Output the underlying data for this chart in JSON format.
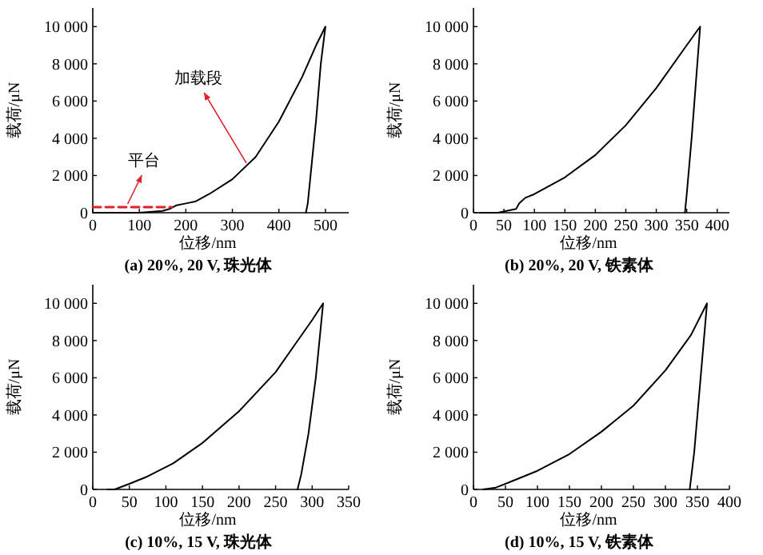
{
  "chart_data": [
    {
      "type": "line",
      "title": "(a) 20%, 20 V, 珠光体",
      "xlabel": "位移/nm",
      "ylabel": "载荷/μN",
      "xlim": [
        0,
        550
      ],
      "ylim": [
        0,
        11000
      ],
      "xticks": [
        0,
        100,
        200,
        300,
        400,
        500
      ],
      "yticks": [
        {
          "value": 0,
          "label": "0"
        },
        {
          "value": 2000,
          "label": "2 000"
        },
        {
          "value": 4000,
          "label": "4 000"
        },
        {
          "value": 6000,
          "label": "6 000"
        },
        {
          "value": 8000,
          "label": "8 000"
        },
        {
          "value": 10000,
          "label": "10 000"
        }
      ],
      "series": [
        {
          "color": "#000000",
          "line_style": "solid",
          "x": [
            0,
            50,
            100,
            150,
            165,
            180,
            200,
            220,
            250,
            300,
            350,
            400,
            450,
            480,
            500,
            490,
            480,
            470,
            462,
            458
          ],
          "values": [
            0,
            0,
            0,
            100,
            200,
            400,
            500,
            600,
            1000,
            1800,
            3000,
            4900,
            7300,
            9000,
            10000,
            8000,
            5000,
            2500,
            500,
            0
          ]
        },
        {
          "color": "#e0202a",
          "line_style": "dashed",
          "x": [
            0,
            170
          ],
          "values": [
            300,
            300
          ]
        }
      ],
      "annotations": [
        {
          "text": "平台",
          "x": 75,
          "y": 300
        },
        {
          "text": "加载段",
          "x": 330,
          "y": 2500
        }
      ]
    },
    {
      "type": "line",
      "title": "(b) 20%, 20 V, 铁素体",
      "xlabel": "位移/nm",
      "ylabel": "载荷/μN",
      "xlim": [
        0,
        420
      ],
      "ylim": [
        0,
        11000
      ],
      "xticks": [
        0,
        50,
        100,
        150,
        200,
        250,
        300,
        350,
        400
      ],
      "yticks": [
        {
          "value": 0,
          "label": "0"
        },
        {
          "value": 2000,
          "label": "2 000"
        },
        {
          "value": 4000,
          "label": "4 000"
        },
        {
          "value": 6000,
          "label": "6 000"
        },
        {
          "value": 8000,
          "label": "8 000"
        },
        {
          "value": 10000,
          "label": "10 000"
        }
      ],
      "series": [
        {
          "color": "#000000",
          "line_style": "solid",
          "x": [
            10,
            30,
            40,
            70,
            75,
            85,
            100,
            150,
            200,
            250,
            300,
            350,
            372,
            365,
            358,
            350,
            347
          ],
          "values": [
            0,
            0,
            0,
            200,
            500,
            800,
            1000,
            1900,
            3100,
            4700,
            6700,
            9000,
            10000,
            7000,
            4000,
            1000,
            0
          ]
        }
      ]
    },
    {
      "type": "line",
      "title": "(c) 10%, 15 V, 珠光体",
      "xlabel": "位移/nm",
      "ylabel": "载荷/μN",
      "xlim": [
        0,
        350
      ],
      "ylim": [
        0,
        11000
      ],
      "xticks": [
        0,
        50,
        100,
        150,
        200,
        250,
        300,
        350
      ],
      "yticks": [
        {
          "value": 0,
          "label": "0"
        },
        {
          "value": 2000,
          "label": "2 000"
        },
        {
          "value": 4000,
          "label": "4 000"
        },
        {
          "value": 6000,
          "label": "6 000"
        },
        {
          "value": 8000,
          "label": "8 000"
        },
        {
          "value": 10000,
          "label": "10 000"
        }
      ],
      "series": [
        {
          "color": "#000000",
          "line_style": "solid",
          "x": [
            20,
            30,
            50,
            75,
            110,
            150,
            200,
            250,
            275,
            300,
            315,
            305,
            295,
            285,
            280
          ],
          "values": [
            0,
            0,
            300,
            700,
            1400,
            2500,
            4200,
            6300,
            7700,
            9100,
            10000,
            6000,
            3000,
            800,
            0
          ]
        }
      ]
    },
    {
      "type": "line",
      "title": "(d) 10%, 15 V, 铁素体",
      "xlabel": "位移/nm",
      "ylabel": "载荷/μN",
      "xlim": [
        0,
        400
      ],
      "ylim": [
        0,
        11000
      ],
      "xticks": [
        0,
        50,
        100,
        150,
        200,
        250,
        300,
        350,
        400
      ],
      "yticks": [
        {
          "value": 0,
          "label": "0"
        },
        {
          "value": 2000,
          "label": "2 000"
        },
        {
          "value": 4000,
          "label": "4 000"
        },
        {
          "value": 6000,
          "label": "6 000"
        },
        {
          "value": 8000,
          "label": "8 000"
        },
        {
          "value": 10000,
          "label": "10 000"
        }
      ],
      "series": [
        {
          "color": "#000000",
          "line_style": "solid",
          "x": [
            15,
            35,
            50,
            100,
            150,
            200,
            250,
            300,
            340,
            365,
            355,
            345,
            338
          ],
          "values": [
            0,
            100,
            300,
            1000,
            1900,
            3100,
            4500,
            6400,
            8300,
            10000,
            6000,
            2000,
            0
          ]
        }
      ]
    }
  ]
}
